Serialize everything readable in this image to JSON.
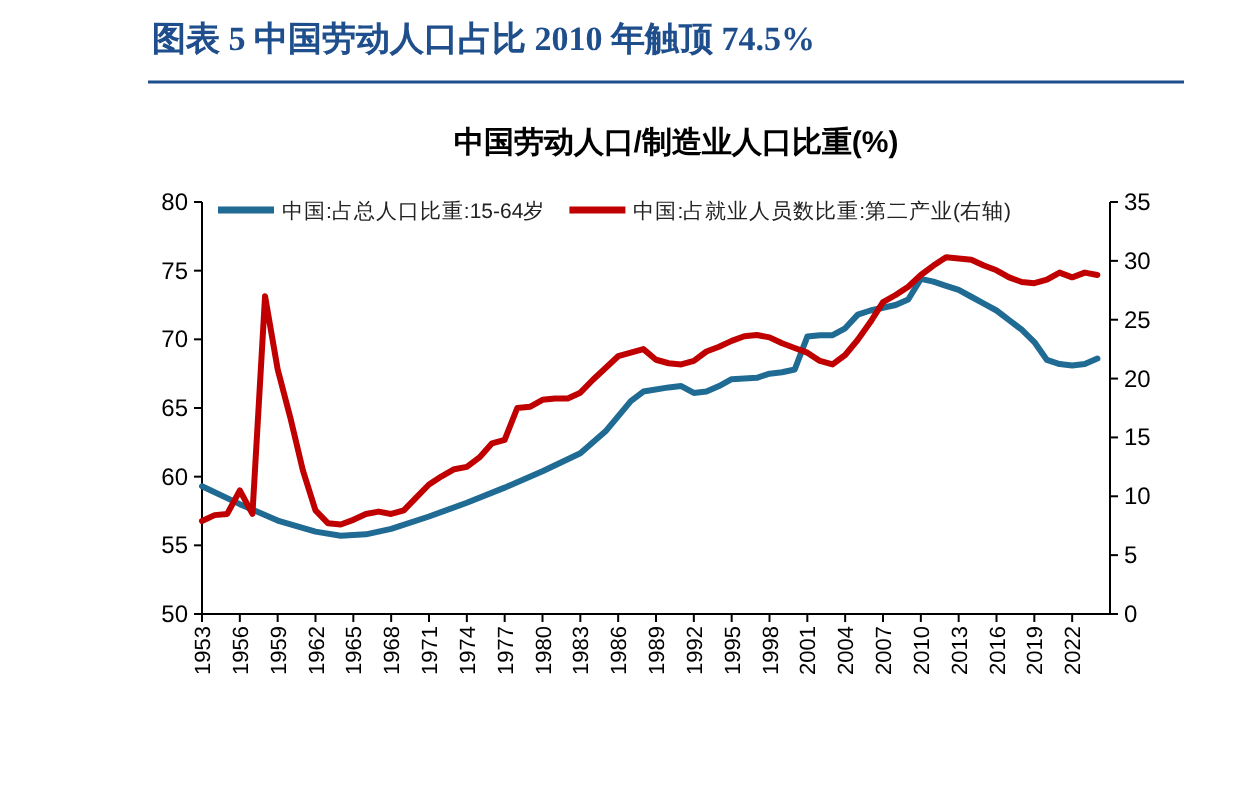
{
  "chart_data": {
    "type": "line",
    "title": "图表 5   中国劳动人口占比 2010 年触顶 74.5%",
    "subtitle": "中国劳动人口/制造业人口比重(%)",
    "legend": "top left",
    "grid": false,
    "marker": "none",
    "line_style": "solid",
    "xlim": [
      1953,
      2025
    ],
    "xticks": [
      1953,
      1956,
      1959,
      1962,
      1965,
      1968,
      1971,
      1974,
      1977,
      1980,
      1983,
      1986,
      1989,
      1992,
      1995,
      1998,
      2001,
      2004,
      2007,
      2010,
      2013,
      2016,
      2019,
      2022
    ],
    "ylim": [
      50,
      80
    ],
    "yticks": [
      50,
      55,
      60,
      65,
      70,
      75,
      80
    ],
    "y2lim": [
      0,
      35
    ],
    "y2ticks": [
      0,
      5,
      10,
      15,
      20,
      25,
      30,
      35
    ],
    "series": [
      {
        "name": "中国:占总人口比重:15-64岁",
        "color": "#1f6b94",
        "x": [
          1953,
          1956,
          1959,
          1962,
          1964,
          1966,
          1968,
          1971,
          1974,
          1977,
          1980,
          1983,
          1985,
          1987,
          1988,
          1990,
          1991,
          1992,
          1993,
          1994,
          1995,
          1997,
          1998,
          1999,
          2000,
          2001,
          2002,
          2003,
          2004,
          2005,
          2006,
          2007,
          2008,
          2009,
          2010,
          2011,
          2012,
          2013,
          2014,
          2015,
          2016,
          2017,
          2018,
          2019,
          2020,
          2021,
          2022,
          2023,
          2024
        ],
        "values": [
          59.3,
          58,
          56.8,
          56,
          55.7,
          55.8,
          56.2,
          57.1,
          58.1,
          59.2,
          60.4,
          61.7,
          63.3,
          65.5,
          66.2,
          66.5,
          66.6,
          66.1,
          66.2,
          66.6,
          67.1,
          67.2,
          67.5,
          67.6,
          67.8,
          70.2,
          70.3,
          70.3,
          70.8,
          71.8,
          72.1,
          72.3,
          72.5,
          72.9,
          74.4,
          74.2,
          73.9,
          73.6,
          73.1,
          72.6,
          72.1,
          71.4,
          70.7,
          69.8,
          68.5,
          68.2,
          68.1,
          68.2,
          68.6
        ]
      },
      {
        "name": "中国:占就业人员数比重:第二产业(右轴)",
        "color": "#c00000",
        "axis": "y2",
        "x": [
          1953,
          1954,
          1955,
          1956,
          1957,
          1958,
          1959,
          1960,
          1961,
          1962,
          1963,
          1964,
          1965,
          1966,
          1967,
          1968,
          1969,
          1970,
          1971,
          1972,
          1973,
          1974,
          1975,
          1976,
          1977,
          1978,
          1979,
          1980,
          1981,
          1982,
          1983,
          1984,
          1985,
          1986,
          1987,
          1988,
          1989,
          1990,
          1991,
          1992,
          1993,
          1994,
          1995,
          1996,
          1997,
          1998,
          1999,
          2000,
          2001,
          2002,
          2003,
          2004,
          2005,
          2006,
          2007,
          2008,
          2009,
          2010,
          2011,
          2012,
          2013,
          2014,
          2015,
          2016,
          2017,
          2018,
          2019,
          2020,
          2021,
          2022,
          2023,
          2024
        ],
        "values": [
          7.9,
          8.4,
          8.5,
          10.5,
          8.5,
          27.0,
          20.8,
          16.7,
          12.2,
          8.8,
          7.7,
          7.6,
          8.0,
          8.5,
          8.7,
          8.5,
          8.8,
          9.9,
          11.0,
          11.7,
          12.3,
          12.5,
          13.3,
          14.5,
          14.8,
          17.5,
          17.6,
          18.2,
          18.3,
          18.3,
          18.8,
          19.9,
          20.9,
          21.9,
          22.2,
          22.5,
          21.6,
          21.3,
          21.2,
          21.5,
          22.3,
          22.7,
          23.2,
          23.6,
          23.7,
          23.5,
          23.0,
          22.6,
          22.2,
          21.5,
          21.2,
          22.0,
          23.3,
          24.8,
          26.5,
          27.1,
          27.8,
          28.8,
          29.6,
          30.3,
          30.2,
          30.1,
          29.6,
          29.2,
          28.6,
          28.2,
          28.1,
          28.4,
          29.0,
          28.6,
          29.0,
          28.8
        ]
      }
    ]
  }
}
